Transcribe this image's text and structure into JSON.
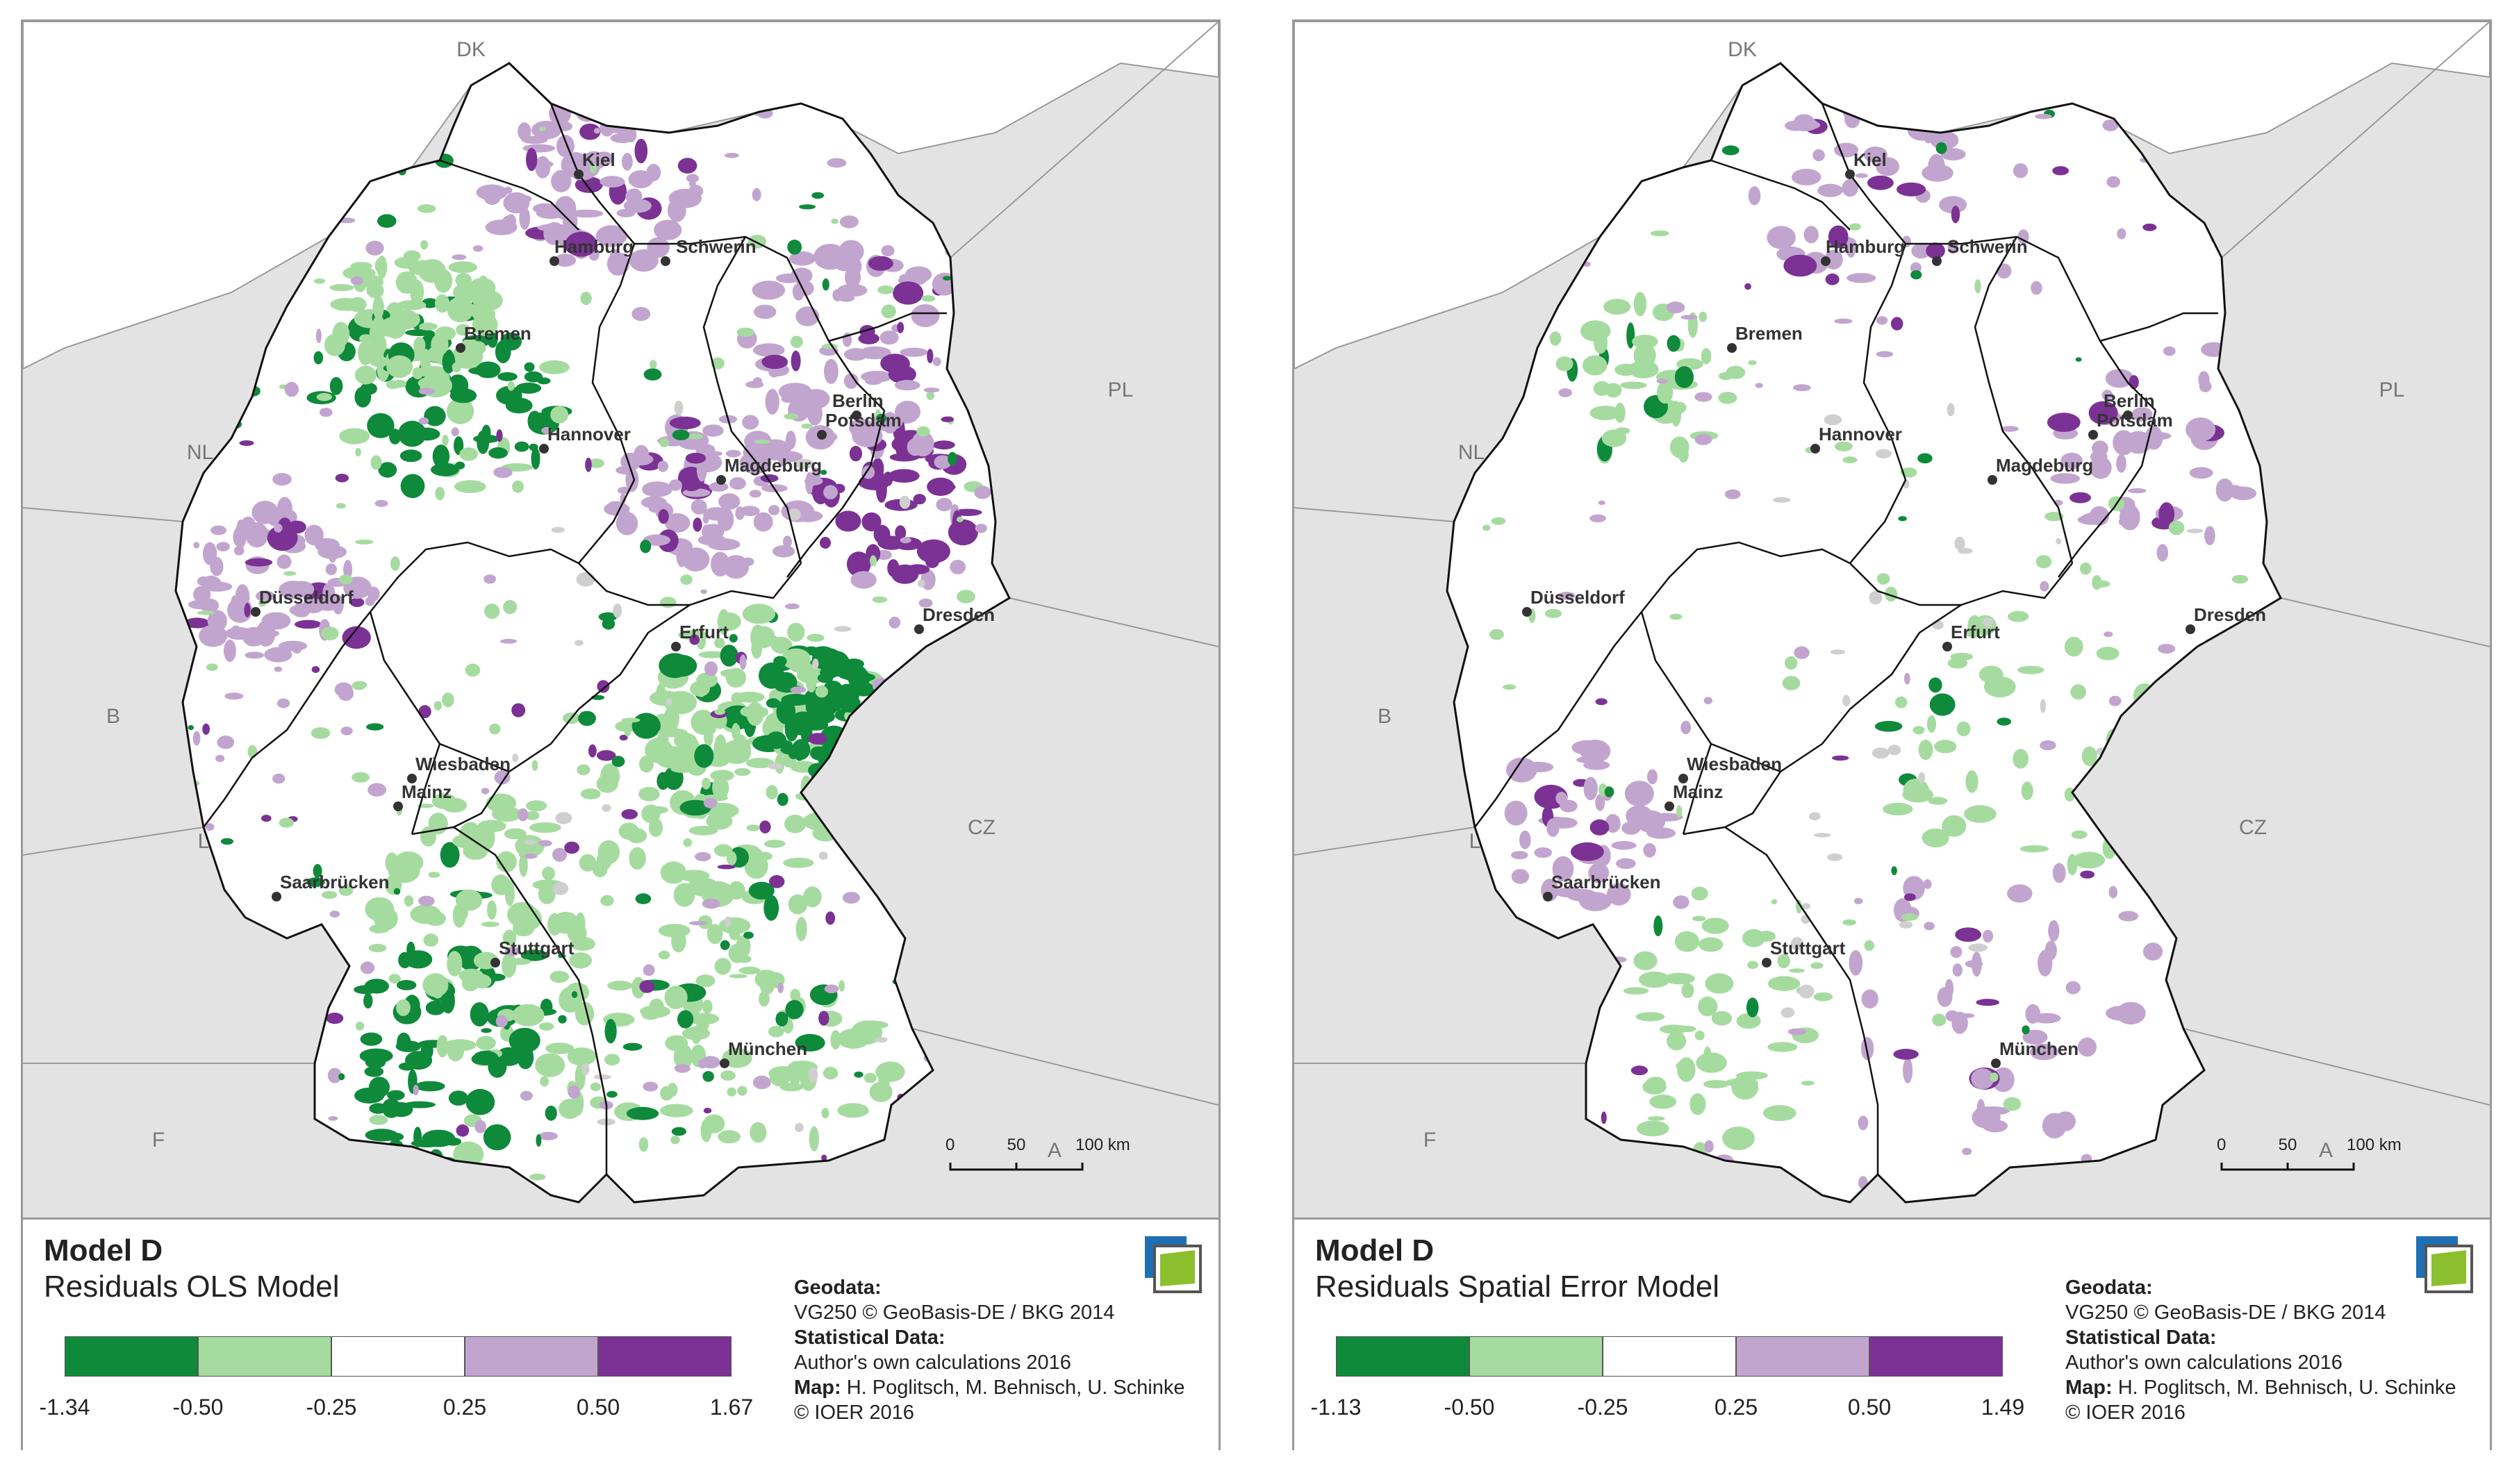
{
  "maps": [
    {
      "title": "Model D",
      "subtitle": "Residuals OLS Model",
      "legend_ticks": [
        "-1.34",
        "-0.50",
        "-0.25",
        "0.25",
        "0.50",
        "1.67"
      ],
      "legend_colors": [
        "#0e8a3a",
        "#a6dba0",
        "#ffffff",
        "#c2a5cf",
        "#7b3294"
      ],
      "pattern_intensity": {
        "strong_green": 0.7,
        "light_green": 0.9,
        "light_purple": 0.8,
        "strong_purple": 0.6
      }
    },
    {
      "title": "Model D",
      "subtitle": "Residuals Spatial Error Model",
      "legend_ticks": [
        "-1.13",
        "-0.50",
        "-0.25",
        "0.25",
        "0.50",
        "1.49"
      ],
      "legend_colors": [
        "#0e8a3a",
        "#a6dba0",
        "#ffffff",
        "#c2a5cf",
        "#7b3294"
      ],
      "pattern_intensity": {
        "strong_green": 0.15,
        "light_green": 0.45,
        "light_purple": 0.45,
        "strong_purple": 0.12
      }
    }
  ],
  "countries": [
    "DK",
    "PL",
    "NL",
    "B",
    "L",
    "CZ",
    "F",
    "A"
  ],
  "cities": [
    "Kiel",
    "Hamburg",
    "Schwerin",
    "Bremen",
    "Berlin",
    "Potsdam",
    "Hannover",
    "Magdeburg",
    "Düsseldorf",
    "Dresden",
    "Erfurt",
    "Wiesbaden",
    "Mainz",
    "Saarbrücken",
    "Stuttgart",
    "München"
  ],
  "scale_labels": [
    "0",
    "50",
    "100 km"
  ],
  "credits": {
    "geodata_heading": "Geodata:",
    "geodata_text": "VG250 © GeoBasis-DE / BKG 2014",
    "stat_heading": "Statistical Data:",
    "stat_text": "Author's own calculations 2016",
    "map_heading": "Map:",
    "map_text": "H. Poglitsch, M. Behnisch, U. Schinke",
    "copyright": "© IOER 2016"
  },
  "colors": {
    "background_land": "#e3e3e3",
    "germany_fill": "#ffffff",
    "border": "#111111",
    "gray_na": "#cfcfcf"
  }
}
